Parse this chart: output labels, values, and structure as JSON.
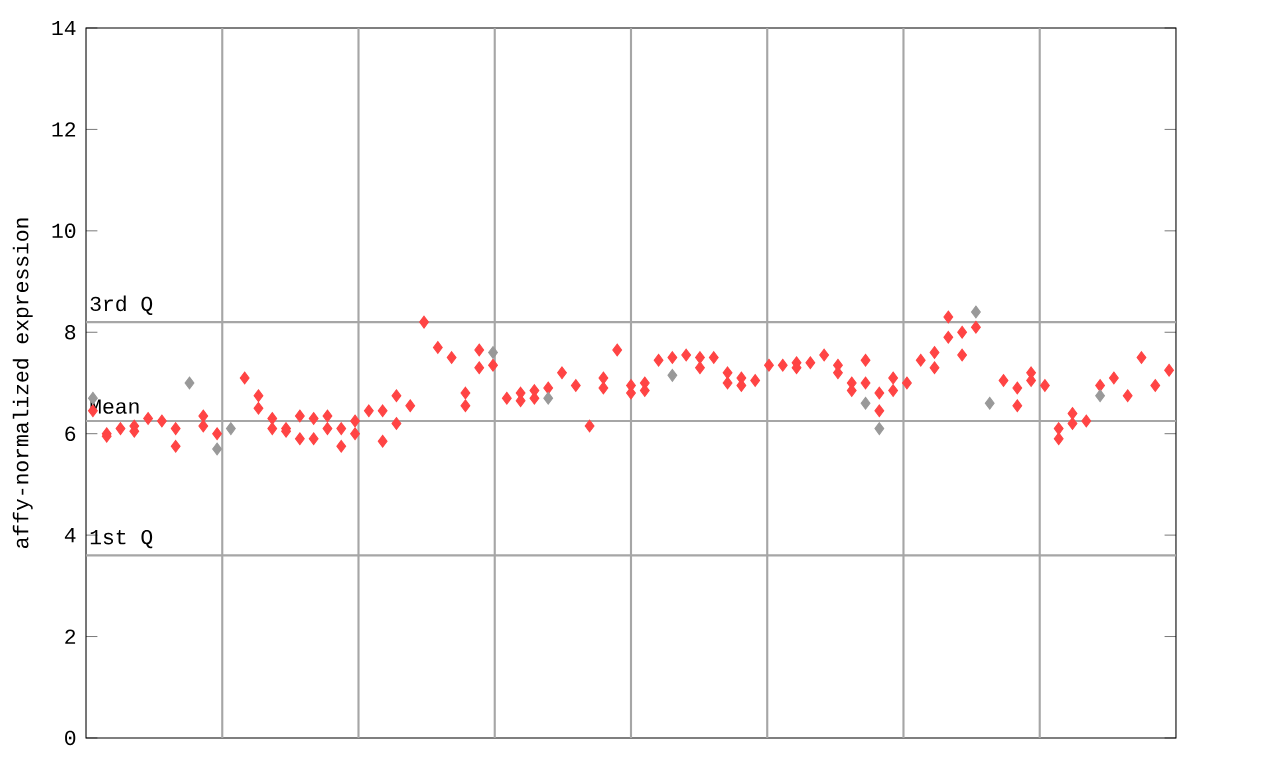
{
  "chart_data": {
    "type": "scatter",
    "ylabel": "affy-normalized expression",
    "categories": [
      null,
      null,
      null,
      null,
      null,
      null,
      null,
      null,
      null,
      null,
      null,
      null,
      null,
      null,
      null,
      null,
      null,
      null,
      null,
      null,
      null,
      null,
      null,
      null,
      null,
      null,
      null,
      null,
      null,
      null,
      null,
      null,
      null,
      null,
      null,
      null,
      null,
      null,
      null,
      null,
      null,
      null,
      null,
      null,
      null,
      null,
      null,
      null,
      null,
      null,
      null,
      null,
      null,
      null,
      null,
      null,
      null,
      null,
      null,
      null,
      null,
      null,
      null,
      null,
      null,
      null,
      null,
      null,
      null,
      null,
      null,
      null,
      null,
      null,
      null,
      null,
      null,
      null,
      null
    ],
    "ylim": [
      0,
      14
    ],
    "yticks": [
      0,
      2,
      4,
      6,
      8,
      10,
      12,
      14
    ],
    "tick_labels": "y",
    "grid": "x",
    "marker": "diamond",
    "series": [
      {
        "color": "#ff4444",
        "values": [
          6.45,
          6.0,
          6.1,
          6.15,
          6.3,
          6.25,
          6.1,
          null,
          6.35,
          6.0,
          null,
          7.1,
          6.75,
          6.3,
          6.1,
          6.35,
          6.3,
          6.35,
          5.75,
          6.25,
          6.45,
          6.45,
          6.75,
          6.55,
          8.2,
          7.7,
          7.5,
          6.8,
          7.3,
          7.35,
          6.7,
          6.8,
          6.85,
          6.9,
          7.2,
          6.95,
          6.15,
          7.1,
          7.65,
          6.95,
          7.0,
          7.45,
          7.5,
          7.55,
          7.5,
          7.5,
          7.2,
          7.1,
          7.05,
          7.35,
          7.35,
          7.4,
          7.4,
          7.55,
          7.35,
          7.0,
          7.45,
          6.8,
          7.1,
          7.0,
          7.45,
          7.6,
          8.3,
          8.0,
          8.1,
          null,
          7.05,
          6.9,
          7.2,
          6.95,
          6.1,
          6.4,
          6.25,
          6.95,
          7.1,
          6.75,
          7.5,
          6.95,
          7.25
        ]
      },
      {
        "color": "#ff4444",
        "values": [
          null,
          5.95,
          null,
          6.05,
          null,
          null,
          5.75,
          null,
          6.15,
          null,
          null,
          null,
          6.5,
          6.1,
          6.05,
          5.9,
          5.9,
          6.1,
          6.1,
          6.0,
          null,
          5.85,
          6.2,
          null,
          null,
          null,
          null,
          6.55,
          7.65,
          null,
          null,
          6.65,
          6.7,
          null,
          null,
          null,
          null,
          6.9,
          null,
          6.8,
          6.85,
          null,
          null,
          null,
          7.3,
          null,
          7.0,
          6.95,
          null,
          null,
          null,
          7.3,
          null,
          null,
          7.2,
          6.85,
          7.0,
          6.45,
          6.85,
          null,
          null,
          7.3,
          7.9,
          7.55,
          null,
          null,
          null,
          6.55,
          7.05,
          null,
          5.9,
          6.2,
          null,
          null,
          null,
          null,
          null,
          null,
          null
        ]
      },
      {
        "color": "#999999",
        "values": [
          6.7,
          null,
          null,
          null,
          null,
          null,
          null,
          7.0,
          null,
          5.7,
          6.1,
          null,
          null,
          null,
          null,
          null,
          null,
          null,
          null,
          null,
          null,
          null,
          null,
          null,
          null,
          null,
          null,
          null,
          null,
          7.6,
          null,
          null,
          null,
          6.7,
          null,
          null,
          null,
          null,
          null,
          null,
          null,
          null,
          7.15,
          null,
          null,
          null,
          null,
          null,
          null,
          null,
          null,
          null,
          null,
          null,
          null,
          null,
          6.6,
          6.1,
          null,
          null,
          null,
          null,
          null,
          null,
          8.4,
          6.6,
          null,
          null,
          null,
          null,
          null,
          null,
          null,
          6.75,
          null,
          null,
          null,
          null,
          null
        ]
      }
    ],
    "ref_lines": [
      {
        "axis": "y",
        "value": 8.2,
        "label": "3rd Q"
      },
      {
        "axis": "y",
        "value": 6.25,
        "label": "Mean"
      },
      {
        "axis": "y",
        "value": 3.6,
        "label": "1st Q"
      }
    ]
  }
}
